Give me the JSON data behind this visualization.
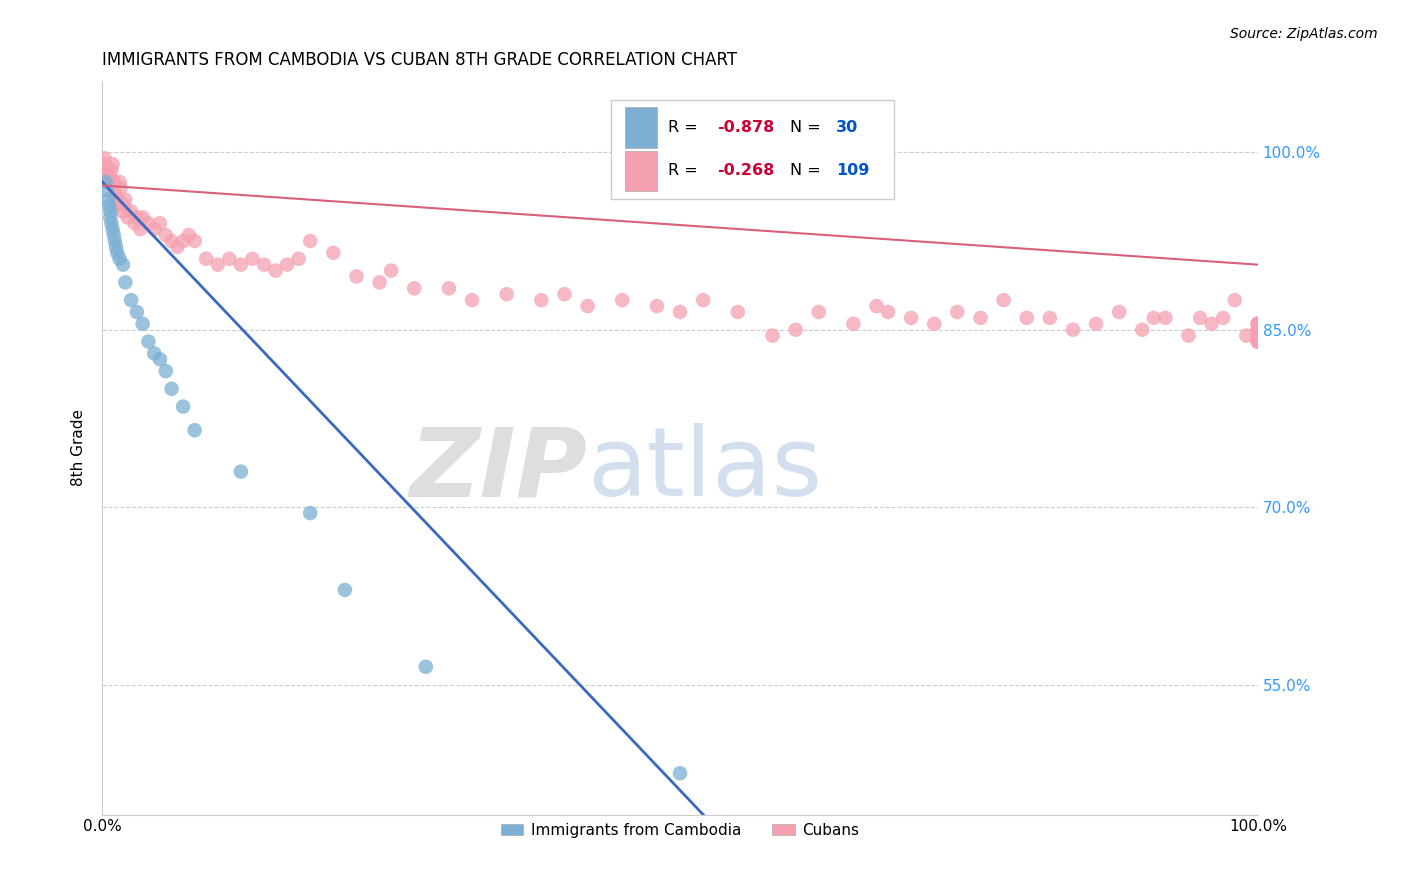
{
  "title": "IMMIGRANTS FROM CAMBODIA VS CUBAN 8TH GRADE CORRELATION CHART",
  "source": "Source: ZipAtlas.com",
  "ylabel": "8th Grade",
  "legend_label_blue": "Immigrants from Cambodia",
  "legend_label_pink": "Cubans",
  "blue_R": -0.878,
  "blue_N": 30,
  "pink_R": -0.268,
  "pink_N": 109,
  "blue_color": "#7bafd4",
  "pink_color": "#f4a0b0",
  "blue_line_color": "#3a6abf",
  "pink_line_color": "#d95f7a",
  "right_yticks": [
    0.55,
    0.7,
    0.85,
    1.0
  ],
  "right_yticklabels": [
    "55.0%",
    "70.0%",
    "85.0%",
    "100.0%"
  ],
  "xlim": [
    0.0,
    1.0
  ],
  "ylim": [
    0.44,
    1.06
  ],
  "blue_line_x0": 0.0,
  "blue_line_y0": 0.975,
  "blue_line_x1": 0.52,
  "blue_line_y1": 0.44,
  "pink_line_x0": 0.0,
  "pink_line_y0": 0.972,
  "pink_line_x1": 1.0,
  "pink_line_y1": 0.905,
  "blue_scatter_x": [
    0.003,
    0.004,
    0.005,
    0.006,
    0.007,
    0.007,
    0.008,
    0.009,
    0.01,
    0.011,
    0.012,
    0.013,
    0.015,
    0.018,
    0.02,
    0.025,
    0.03,
    0.035,
    0.04,
    0.045,
    0.05,
    0.055,
    0.06,
    0.07,
    0.08,
    0.12,
    0.18,
    0.21,
    0.28,
    0.5
  ],
  "blue_scatter_y": [
    0.975,
    0.968,
    0.96,
    0.955,
    0.95,
    0.945,
    0.94,
    0.935,
    0.93,
    0.925,
    0.92,
    0.915,
    0.91,
    0.905,
    0.89,
    0.875,
    0.865,
    0.855,
    0.84,
    0.83,
    0.825,
    0.815,
    0.8,
    0.785,
    0.765,
    0.73,
    0.695,
    0.63,
    0.565,
    0.475
  ],
  "pink_scatter_x": [
    0.002,
    0.003,
    0.004,
    0.005,
    0.006,
    0.007,
    0.008,
    0.009,
    0.01,
    0.011,
    0.012,
    0.013,
    0.014,
    0.015,
    0.016,
    0.018,
    0.019,
    0.02,
    0.022,
    0.025,
    0.028,
    0.03,
    0.033,
    0.035,
    0.04,
    0.045,
    0.05,
    0.055,
    0.06,
    0.065,
    0.07,
    0.075,
    0.08,
    0.09,
    0.1,
    0.11,
    0.12,
    0.13,
    0.14,
    0.15,
    0.16,
    0.17,
    0.18,
    0.2,
    0.22,
    0.24,
    0.25,
    0.27,
    0.3,
    0.32,
    0.35,
    0.38,
    0.4,
    0.42,
    0.45,
    0.48,
    0.5,
    0.52,
    0.55,
    0.58,
    0.6,
    0.62,
    0.65,
    0.67,
    0.68,
    0.7,
    0.72,
    0.74,
    0.76,
    0.78,
    0.8,
    0.82,
    0.84,
    0.86,
    0.88,
    0.9,
    0.91,
    0.92,
    0.94,
    0.95,
    0.96,
    0.97,
    0.98,
    0.99,
    1.0,
    1.0,
    1.0,
    1.0,
    1.0,
    1.0,
    1.0,
    1.0,
    1.0,
    1.0,
    1.0,
    1.0,
    1.0,
    1.0,
    1.0,
    1.0,
    1.0,
    1.0,
    1.0,
    1.0,
    1.0,
    1.0,
    1.0,
    1.0,
    1.0
  ],
  "pink_scatter_y": [
    0.995,
    0.99,
    0.985,
    0.98,
    0.975,
    0.98,
    0.985,
    0.99,
    0.975,
    0.965,
    0.96,
    0.955,
    0.96,
    0.975,
    0.97,
    0.95,
    0.955,
    0.96,
    0.945,
    0.95,
    0.94,
    0.945,
    0.935,
    0.945,
    0.94,
    0.935,
    0.94,
    0.93,
    0.925,
    0.92,
    0.925,
    0.93,
    0.925,
    0.91,
    0.905,
    0.91,
    0.905,
    0.91,
    0.905,
    0.9,
    0.905,
    0.91,
    0.925,
    0.915,
    0.895,
    0.89,
    0.9,
    0.885,
    0.885,
    0.875,
    0.88,
    0.875,
    0.88,
    0.87,
    0.875,
    0.87,
    0.865,
    0.875,
    0.865,
    0.845,
    0.85,
    0.865,
    0.855,
    0.87,
    0.865,
    0.86,
    0.855,
    0.865,
    0.86,
    0.875,
    0.86,
    0.86,
    0.85,
    0.855,
    0.865,
    0.85,
    0.86,
    0.86,
    0.845,
    0.86,
    0.855,
    0.86,
    0.875,
    0.845,
    0.85,
    0.855,
    0.855,
    0.85,
    0.855,
    0.85,
    0.845,
    0.84,
    0.845,
    0.85,
    0.85,
    0.845,
    0.85,
    0.855,
    0.84,
    0.845,
    0.845,
    0.85,
    0.845,
    0.84,
    0.845,
    0.84,
    0.84,
    0.845,
    0.85
  ],
  "watermark_zip": "ZIP",
  "watermark_atlas": "atlas",
  "R_color": "#cc0033",
  "N_color": "#0055cc"
}
